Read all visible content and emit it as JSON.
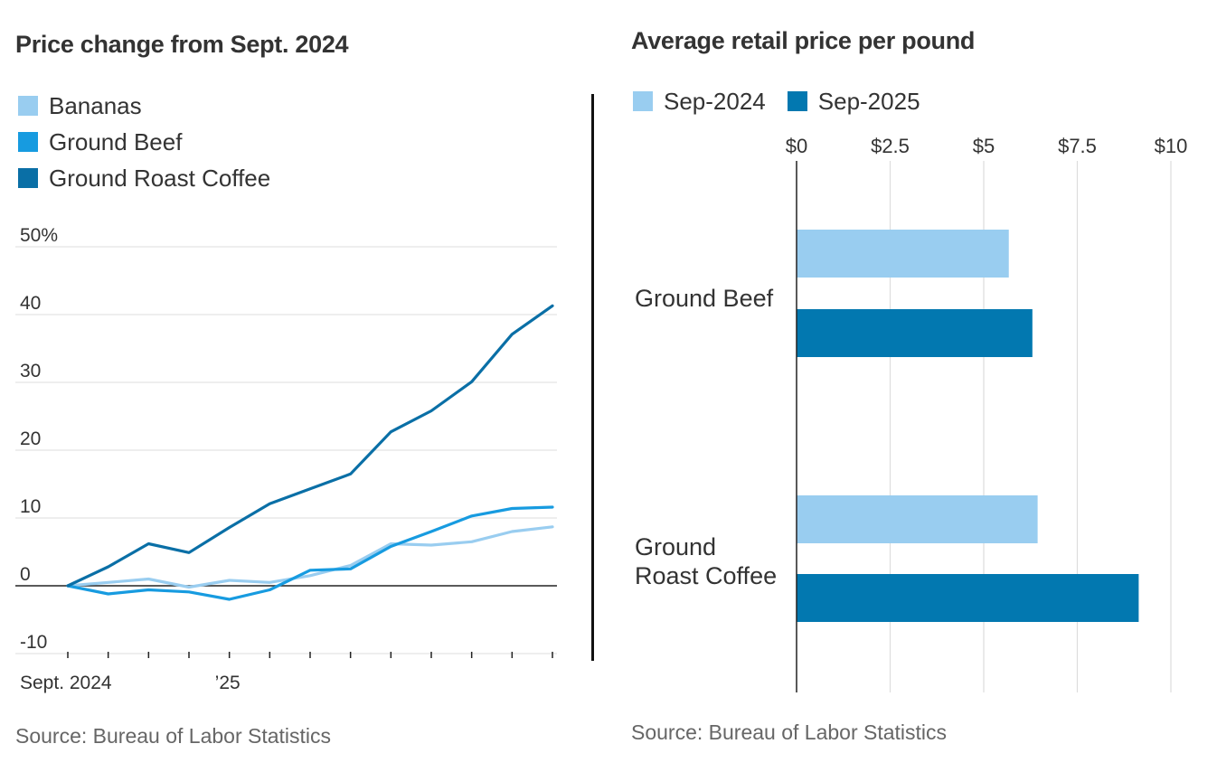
{
  "left": {
    "title": "Price change from Sept. 2024",
    "legend": [
      {
        "label": "Bananas",
        "color": "#99cdf0"
      },
      {
        "label": "Ground Beef",
        "color": "#179be0"
      },
      {
        "label": "Ground Roast Coffee",
        "color": "#0a6fa6"
      }
    ],
    "source": "Source: Bureau of Labor Statistics"
  },
  "right": {
    "title": "Average retail price per pound",
    "legend": [
      {
        "label": "Sep-2024",
        "color": "#99cdf0"
      },
      {
        "label": "Sep-2025",
        "color": "#0278b0"
      }
    ],
    "source": "Source: Bureau of Labor Statistics"
  },
  "chart_data": [
    {
      "type": "line",
      "title": "Price change from Sept. 2024",
      "x": [
        "2024-09",
        "2024-10",
        "2024-11",
        "2024-12",
        "2025-01",
        "2025-02",
        "2025-03",
        "2025-04",
        "2025-05",
        "2025-06",
        "2025-07",
        "2025-08",
        "2025-09"
      ],
      "x_tick_labels": [
        "Sept. 2024",
        "",
        "",
        "",
        "’25",
        "",
        "",
        "",
        "",
        "",
        "",
        "",
        ""
      ],
      "y_tick_labels": [
        "50%",
        "40",
        "30",
        "20",
        "10",
        "0",
        "-10"
      ],
      "y_ticks": [
        50,
        40,
        30,
        20,
        10,
        0,
        -10
      ],
      "ylim": [
        -10,
        50
      ],
      "grid": true,
      "legend_position": "top-left",
      "series": [
        {
          "name": "Bananas",
          "color": "#99cdf0",
          "values": [
            0,
            0.5,
            1.0,
            -0.2,
            0.8,
            0.5,
            1.5,
            3.0,
            6.2,
            6.0,
            6.5,
            8.0,
            8.7
          ]
        },
        {
          "name": "Ground Beef",
          "color": "#179be0",
          "values": [
            0,
            -1.2,
            -0.6,
            -0.9,
            -2.0,
            -0.6,
            2.3,
            2.5,
            5.8,
            8.0,
            10.3,
            11.4,
            11.6
          ]
        },
        {
          "name": "Ground Roast Coffee",
          "color": "#0a6fa6",
          "values": [
            0,
            2.8,
            6.2,
            4.9,
            8.6,
            12.1,
            14.3,
            16.5,
            22.7,
            25.8,
            30.1,
            37.1,
            41.3
          ]
        }
      ]
    },
    {
      "type": "bar",
      "orientation": "horizontal",
      "title": "Average retail price per pound",
      "categories": [
        "Ground Beef",
        "Ground Roast Coffee"
      ],
      "category_label_lines": [
        [
          "Ground Beef"
        ],
        [
          "Ground",
          "Roast Coffee"
        ]
      ],
      "x_tick_labels": [
        "$0",
        "$2.5",
        "$5",
        "$7.5",
        "$10"
      ],
      "x_ticks": [
        0,
        2.5,
        5,
        7.5,
        10
      ],
      "xlim": [
        0,
        10
      ],
      "grid": true,
      "legend_position": "top-left",
      "series": [
        {
          "name": "Sep-2024",
          "color": "#99cdf0",
          "values": [
            5.67,
            6.44
          ]
        },
        {
          "name": "Sep-2025",
          "color": "#0278b0",
          "values": [
            6.3,
            9.14
          ]
        }
      ]
    }
  ]
}
